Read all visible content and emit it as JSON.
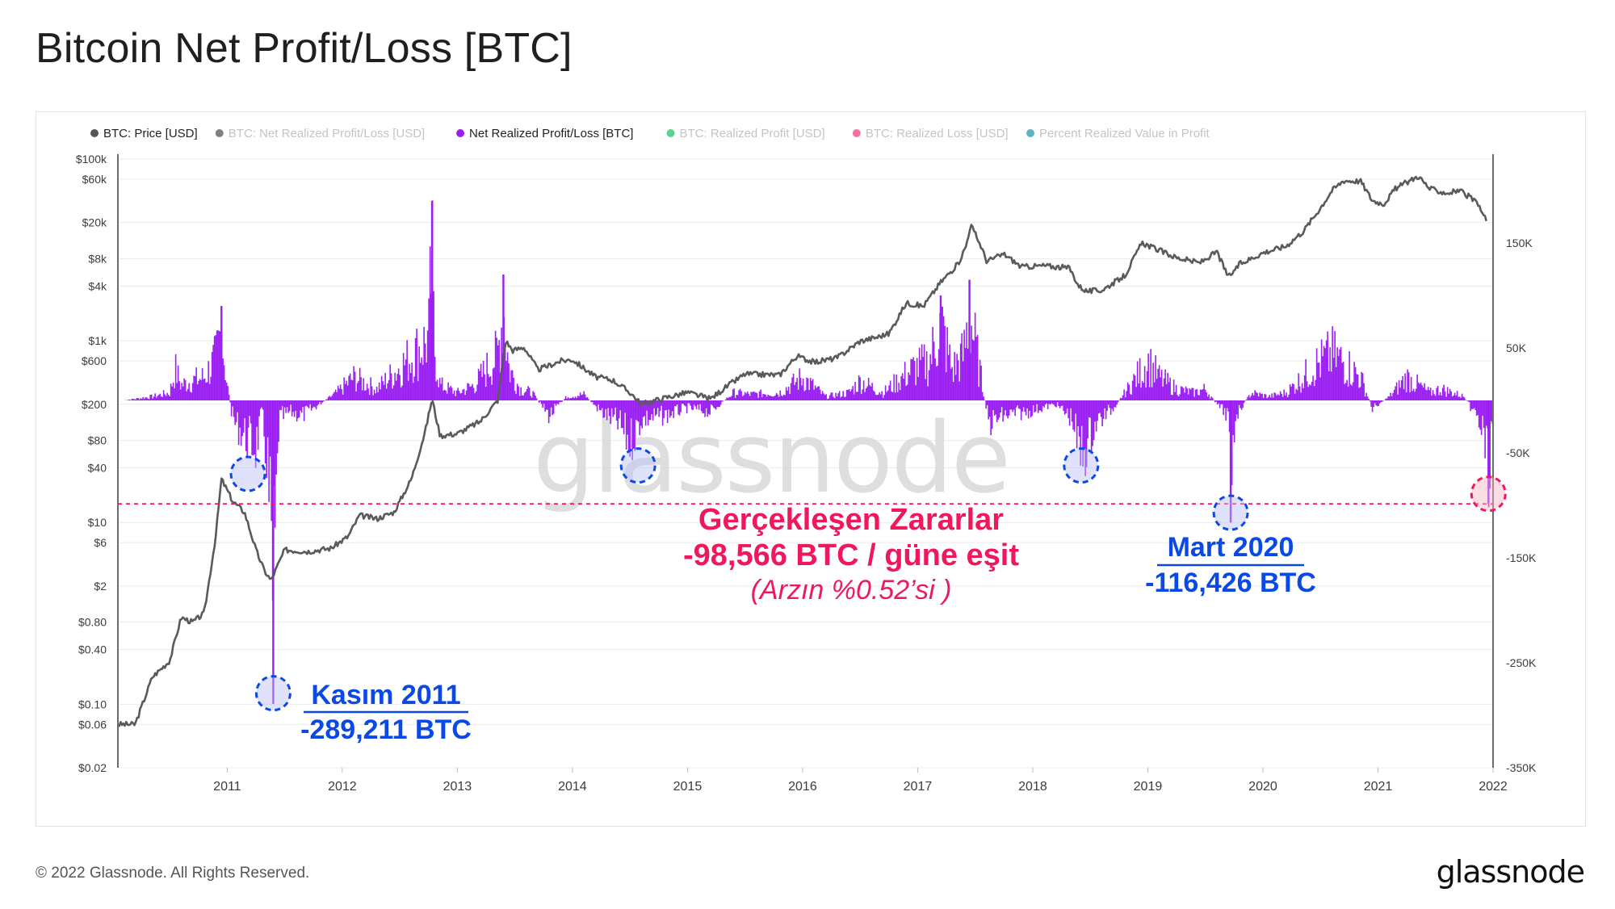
{
  "page": {
    "title": "Bitcoin Net Profit/Loss [BTC]",
    "footer": "© 2022 Glassnode. All Rights Reserved.",
    "logo": "glassnode",
    "watermark": "glassnode"
  },
  "legend": [
    {
      "label": "BTC: Price [USD]",
      "color": "#555555",
      "active": true
    },
    {
      "label": "BTC: Net Realized Profit/Loss [USD]",
      "color": "#555555",
      "active": false
    },
    {
      "label": "Net Realized Profit/Loss [BTC]",
      "color": "#9b1ff2",
      "active": true
    },
    {
      "label": "BTC: Realized Profit [USD]",
      "color": "#21c46b",
      "active": false
    },
    {
      "label": "BTC: Realized Loss [USD]",
      "color": "#f0437a",
      "active": false
    },
    {
      "label": "Percent Realized Value in Profit",
      "color": "#2a9bb0",
      "active": false
    }
  ],
  "annotations": {
    "kasim": {
      "title": "Kasım 2011",
      "value": "-289,211 BTC"
    },
    "mart": {
      "title": "Mart 2020",
      "value": "-116,426 BTC"
    },
    "current": {
      "title": "Gerçekleşen Zararlar",
      "value": "-98,566 BTC / güne eşit",
      "note": "(Arzın %0.52’si )"
    }
  },
  "colors": {
    "price": "#5a5a5a",
    "pnl": "#9b1ff2",
    "annotation_blue": "#0b49e6",
    "annotation_pink": "#f0185c",
    "threshold": "#f0185c"
  },
  "chart_data": {
    "type": "line",
    "x_ticks": [
      "2011",
      "2012",
      "2013",
      "2014",
      "2015",
      "2016",
      "2017",
      "2018",
      "2019",
      "2020",
      "2021",
      "2022"
    ],
    "x_range": [
      2010.55,
      2022.5
    ],
    "left_axis": {
      "scale": "log",
      "range": [
        0.02,
        100000
      ],
      "ticks": [
        {
          "v": 100000,
          "label": "$100k"
        },
        {
          "v": 60000,
          "label": "$60k"
        },
        {
          "v": 20000,
          "label": "$20k"
        },
        {
          "v": 8000,
          "label": "$8k"
        },
        {
          "v": 4000,
          "label": "$4k"
        },
        {
          "v": 1000,
          "label": "$1k"
        },
        {
          "v": 600,
          "label": "$600"
        },
        {
          "v": 200,
          "label": "$200"
        },
        {
          "v": 80,
          "label": "$80"
        },
        {
          "v": 40,
          "label": "$40"
        },
        {
          "v": 10,
          "label": "$10"
        },
        {
          "v": 6,
          "label": "$6"
        },
        {
          "v": 2,
          "label": "$2"
        },
        {
          "v": 0.8,
          "label": "$0.80"
        },
        {
          "v": 0.4,
          "label": "$0.40"
        },
        {
          "v": 0.1,
          "label": "$0.10"
        },
        {
          "v": 0.06,
          "label": "$0.06"
        },
        {
          "v": 0.02,
          "label": "$0.02"
        }
      ]
    },
    "right_axis": {
      "scale": "linear",
      "range": [
        -350000,
        230000
      ],
      "ticks": [
        {
          "v": 150000,
          "label": "150K"
        },
        {
          "v": 50000,
          "label": "50K"
        },
        {
          "v": -50000,
          "label": "-50K"
        },
        {
          "v": -150000,
          "label": "-150K"
        },
        {
          "v": -250000,
          "label": "-250K"
        },
        {
          "v": -350000,
          "label": "-350K"
        }
      ]
    },
    "threshold": -98566,
    "series": [
      {
        "name": "BTC: Price [USD]",
        "axis": "left",
        "points": [
          [
            2010.55,
            0.06
          ],
          [
            2010.7,
            0.06
          ],
          [
            2010.85,
            0.2
          ],
          [
            2011.0,
            0.3
          ],
          [
            2011.1,
            0.9
          ],
          [
            2011.2,
            0.8
          ],
          [
            2011.3,
            1.0
          ],
          [
            2011.4,
            7
          ],
          [
            2011.45,
            30
          ],
          [
            2011.55,
            17
          ],
          [
            2011.65,
            13
          ],
          [
            2011.75,
            5
          ],
          [
            2011.82,
            3
          ],
          [
            2011.88,
            2.3
          ],
          [
            2012.0,
            5
          ],
          [
            2012.2,
            4.8
          ],
          [
            2012.4,
            5.2
          ],
          [
            2012.55,
            7
          ],
          [
            2012.65,
            12
          ],
          [
            2012.8,
            11
          ],
          [
            2012.95,
            13
          ],
          [
            2013.1,
            30
          ],
          [
            2013.22,
            100
          ],
          [
            2013.28,
            230
          ],
          [
            2013.35,
            90
          ],
          [
            2013.5,
            95
          ],
          [
            2013.7,
            130
          ],
          [
            2013.85,
            220
          ],
          [
            2013.92,
            1000
          ],
          [
            2013.98,
            780
          ],
          [
            2014.08,
            850
          ],
          [
            2014.2,
            480
          ],
          [
            2014.4,
            600
          ],
          [
            2014.5,
            620
          ],
          [
            2014.7,
            400
          ],
          [
            2014.85,
            370
          ],
          [
            2015.0,
            270
          ],
          [
            2015.1,
            200
          ],
          [
            2015.3,
            235
          ],
          [
            2015.5,
            270
          ],
          [
            2015.7,
            230
          ],
          [
            2015.85,
            320
          ],
          [
            2016.0,
            430
          ],
          [
            2016.3,
            420
          ],
          [
            2016.45,
            680
          ],
          [
            2016.6,
            580
          ],
          [
            2016.8,
            650
          ],
          [
            2017.0,
            990
          ],
          [
            2017.15,
            1100
          ],
          [
            2017.25,
            1200
          ],
          [
            2017.4,
            2600
          ],
          [
            2017.55,
            2400
          ],
          [
            2017.7,
            4400
          ],
          [
            2017.85,
            7000
          ],
          [
            2017.92,
            11000
          ],
          [
            2017.96,
            19000
          ],
          [
            2018.05,
            11000
          ],
          [
            2018.1,
            7500
          ],
          [
            2018.25,
            9000
          ],
          [
            2018.4,
            6500
          ],
          [
            2018.6,
            6700
          ],
          [
            2018.82,
            6300
          ],
          [
            2018.9,
            4000
          ],
          [
            2018.97,
            3500
          ],
          [
            2019.1,
            3600
          ],
          [
            2019.3,
            5200
          ],
          [
            2019.45,
            12000
          ],
          [
            2019.55,
            10500
          ],
          [
            2019.75,
            8200
          ],
          [
            2019.95,
            7200
          ],
          [
            2020.1,
            9500
          ],
          [
            2020.2,
            5000
          ],
          [
            2020.3,
            7000
          ],
          [
            2020.5,
            9300
          ],
          [
            2020.7,
            11000
          ],
          [
            2020.85,
            16000
          ],
          [
            2021.0,
            29000
          ],
          [
            2021.1,
            45000
          ],
          [
            2021.2,
            58000
          ],
          [
            2021.35,
            57000
          ],
          [
            2021.45,
            35000
          ],
          [
            2021.55,
            32000
          ],
          [
            2021.65,
            47000
          ],
          [
            2021.85,
            65000
          ],
          [
            2021.95,
            47000
          ],
          [
            2022.1,
            42000
          ],
          [
            2022.2,
            45000
          ],
          [
            2022.3,
            38000
          ],
          [
            2022.38,
            30000
          ],
          [
            2022.45,
            20000
          ]
        ]
      },
      {
        "name": "Net Realized Profit/Loss [BTC]",
        "axis": "right",
        "points": [
          [
            2010.6,
            0
          ],
          [
            2010.85,
            5000
          ],
          [
            2011.0,
            10000
          ],
          [
            2011.05,
            40000
          ],
          [
            2011.1,
            20000
          ],
          [
            2011.18,
            25000
          ],
          [
            2011.3,
            30000
          ],
          [
            2011.4,
            55000
          ],
          [
            2011.45,
            90000
          ],
          [
            2011.5,
            20000
          ],
          [
            2011.55,
            -25000
          ],
          [
            2011.62,
            -40000
          ],
          [
            2011.7,
            -55000
          ],
          [
            2011.75,
            -60000
          ],
          [
            2011.8,
            -20000
          ],
          [
            2011.85,
            -80000
          ],
          [
            2011.9,
            -289211
          ],
          [
            2011.95,
            -25000
          ],
          [
            2012.05,
            -15000
          ],
          [
            2012.15,
            -20000
          ],
          [
            2012.25,
            -10000
          ],
          [
            2012.45,
            10000
          ],
          [
            2012.6,
            30000
          ],
          [
            2012.8,
            15000
          ],
          [
            2013.05,
            50000
          ],
          [
            2013.25,
            80000
          ],
          [
            2013.28,
            190000
          ],
          [
            2013.3,
            70000
          ],
          [
            2013.35,
            20000
          ],
          [
            2013.5,
            10000
          ],
          [
            2013.65,
            20000
          ],
          [
            2013.85,
            60000
          ],
          [
            2013.9,
            120000
          ],
          [
            2013.95,
            40000
          ],
          [
            2014.05,
            15000
          ],
          [
            2014.15,
            10000
          ],
          [
            2014.3,
            -20000
          ],
          [
            2014.45,
            5000
          ],
          [
            2014.6,
            8000
          ],
          [
            2014.75,
            -15000
          ],
          [
            2014.9,
            -30000
          ],
          [
            2015.0,
            -55000
          ],
          [
            2015.1,
            -25000
          ],
          [
            2015.3,
            -20000
          ],
          [
            2015.5,
            -10000
          ],
          [
            2015.7,
            -15000
          ],
          [
            2015.9,
            10000
          ],
          [
            2016.05,
            8000
          ],
          [
            2016.3,
            10000
          ],
          [
            2016.5,
            30000
          ],
          [
            2016.7,
            5000
          ],
          [
            2016.9,
            10000
          ],
          [
            2017.0,
            25000
          ],
          [
            2017.2,
            10000
          ],
          [
            2017.45,
            40000
          ],
          [
            2017.6,
            50000
          ],
          [
            2017.7,
            100000
          ],
          [
            2017.8,
            40000
          ],
          [
            2017.9,
            60000
          ],
          [
            2017.95,
            115000
          ],
          [
            2018.05,
            30000
          ],
          [
            2018.12,
            -30000
          ],
          [
            2018.25,
            -20000
          ],
          [
            2018.45,
            -15000
          ],
          [
            2018.7,
            -5000
          ],
          [
            2018.85,
            -25000
          ],
          [
            2018.9,
            -70000
          ],
          [
            2018.95,
            -65000
          ],
          [
            2019.05,
            -30000
          ],
          [
            2019.2,
            -10000
          ],
          [
            2019.35,
            20000
          ],
          [
            2019.5,
            50000
          ],
          [
            2019.6,
            30000
          ],
          [
            2019.75,
            15000
          ],
          [
            2019.9,
            10000
          ],
          [
            2020.0,
            15000
          ],
          [
            2020.1,
            -5000
          ],
          [
            2020.2,
            -20000
          ],
          [
            2020.22,
            -116426
          ],
          [
            2020.26,
            -20000
          ],
          [
            2020.4,
            10000
          ],
          [
            2020.55,
            5000
          ],
          [
            2020.7,
            10000
          ],
          [
            2020.85,
            30000
          ],
          [
            2020.95,
            45000
          ],
          [
            2021.1,
            60000
          ],
          [
            2021.2,
            50000
          ],
          [
            2021.35,
            30000
          ],
          [
            2021.45,
            -10000
          ],
          [
            2021.6,
            5000
          ],
          [
            2021.75,
            30000
          ],
          [
            2021.85,
            20000
          ],
          [
            2021.95,
            10000
          ],
          [
            2022.05,
            15000
          ],
          [
            2022.15,
            10000
          ],
          [
            2022.25,
            5000
          ],
          [
            2022.35,
            -20000
          ],
          [
            2022.42,
            -45000
          ],
          [
            2022.46,
            -98566
          ],
          [
            2022.5,
            -15000
          ]
        ]
      }
    ]
  }
}
